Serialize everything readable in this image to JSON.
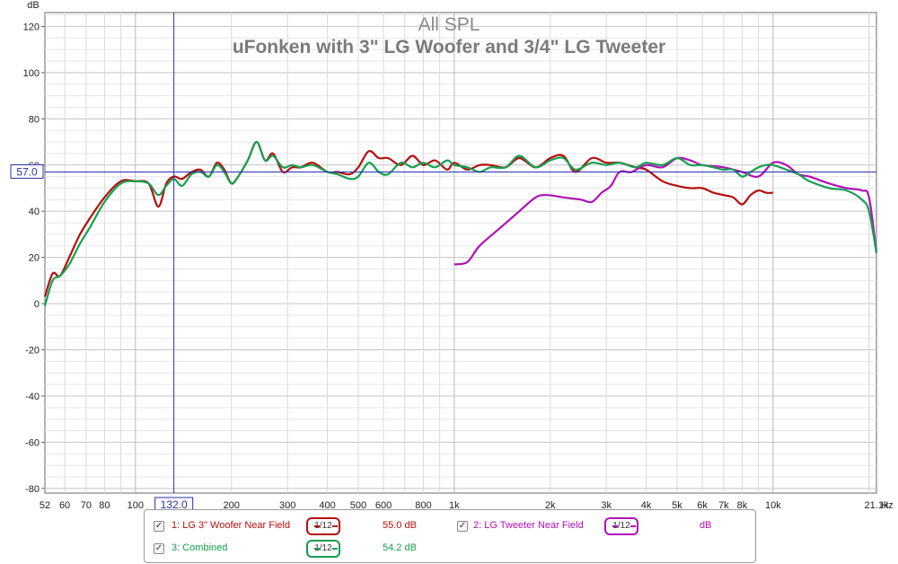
{
  "chart_data": {
    "type": "line",
    "title": "All SPL",
    "subtitle": "uFonken with 3\" LG Woofer and 3/4\" LG Tweeter",
    "ylabel": "dB",
    "xlabel": "Hz",
    "x_scale": "log",
    "xlim": [
      52,
      21100
    ],
    "ylim": [
      -82,
      126
    ],
    "y_ticks": [
      120,
      100,
      80,
      60,
      40,
      20,
      0,
      -20,
      -40,
      -60,
      -80
    ],
    "x_ticks": [
      {
        "v": 52,
        "label": "52"
      },
      {
        "v": 60,
        "label": "60"
      },
      {
        "v": 70,
        "label": "70"
      },
      {
        "v": 80,
        "label": "80"
      },
      {
        "v": 100,
        "label": "100"
      },
      {
        "v": 200,
        "label": "200"
      },
      {
        "v": 300,
        "label": "300"
      },
      {
        "v": 400,
        "label": "400"
      },
      {
        "v": 500,
        "label": "500"
      },
      {
        "v": 600,
        "label": "600"
      },
      {
        "v": 800,
        "label": "800"
      },
      {
        "v": 1000,
        "label": "1k"
      },
      {
        "v": 2000,
        "label": "2k"
      },
      {
        "v": 3000,
        "label": "3k"
      },
      {
        "v": 4000,
        "label": "4k"
      },
      {
        "v": 5000,
        "label": "5k"
      },
      {
        "v": 6000,
        "label": "6k"
      },
      {
        "v": 7000,
        "label": "7k"
      },
      {
        "v": 8000,
        "label": "8k"
      },
      {
        "v": 10000,
        "label": "10k"
      },
      {
        "v": 21100,
        "label": "21.1k"
      }
    ],
    "cursor": {
      "x": 132,
      "x_label": "132.0",
      "y": 57,
      "y_label": "57.0"
    },
    "grid": true,
    "series": [
      {
        "name": "LG 3\" Woofer Near Field",
        "color": "#b50d0d",
        "x": [
          52,
          55,
          58,
          62,
          67,
          72,
          80,
          90,
          100,
          110,
          118,
          125,
          132,
          140,
          150,
          160,
          170,
          180,
          190,
          200,
          210,
          225,
          240,
          255,
          270,
          290,
          310,
          330,
          360,
          400,
          430,
          470,
          500,
          540,
          580,
          620,
          680,
          740,
          800,
          870,
          950,
          1000,
          1100,
          1200,
          1300,
          1450,
          1600,
          1800,
          2000,
          2200,
          2400,
          2700,
          3000,
          3300,
          3700,
          4000,
          4500,
          5000,
          5500,
          6000,
          6500,
          7000,
          7500,
          8000,
          8500,
          9000,
          9500,
          10000
        ],
        "y": [
          3,
          13,
          12,
          20,
          30,
          37,
          46,
          53,
          53,
          52,
          42,
          52,
          55,
          54,
          57,
          58,
          55,
          61,
          58,
          52,
          55,
          62,
          70,
          62,
          65,
          57,
          59,
          59,
          61,
          57,
          57,
          56,
          59,
          66,
          63,
          63,
          60,
          64,
          60,
          62,
          58,
          61,
          58,
          60,
          60,
          59,
          63,
          59,
          63,
          64,
          57,
          63,
          61,
          61,
          59,
          58,
          53,
          51,
          50,
          50,
          48,
          47,
          46,
          43,
          47,
          49,
          48,
          48
        ]
      },
      {
        "name": "LG Tweeter Near Field",
        "color": "#b010b5",
        "x": [
          1000,
          1100,
          1200,
          1400,
          1600,
          1800,
          1950,
          2200,
          2500,
          2700,
          2900,
          3100,
          3300,
          3600,
          4000,
          4500,
          5000,
          5500,
          6000,
          7000,
          8000,
          9000,
          10000,
          11000,
          12000,
          13000,
          15000,
          17000,
          19000,
          20000,
          21100
        ],
        "y": [
          17,
          18,
          25,
          33,
          40,
          46,
          47,
          46,
          45,
          44,
          48,
          51,
          57,
          57,
          60,
          59,
          63,
          62,
          60,
          59,
          57,
          55,
          61,
          60,
          56,
          55,
          52,
          50,
          49,
          46,
          22
        ]
      },
      {
        "name": "Combined",
        "color": "#14a050",
        "x": [
          52,
          55,
          58,
          62,
          67,
          72,
          80,
          90,
          100,
          110,
          118,
          125,
          132,
          140,
          150,
          160,
          170,
          180,
          190,
          200,
          210,
          225,
          240,
          255,
          270,
          290,
          310,
          330,
          360,
          400,
          430,
          470,
          500,
          540,
          580,
          620,
          680,
          740,
          800,
          870,
          950,
          1000,
          1100,
          1200,
          1300,
          1450,
          1600,
          1800,
          2000,
          2200,
          2400,
          2700,
          3000,
          3300,
          3700,
          4000,
          4500,
          5000,
          5500,
          6000,
          6500,
          7000,
          7500,
          8000,
          8500,
          9000,
          9500,
          10000,
          11000,
          12000,
          13000,
          15000,
          17000,
          19000,
          20000,
          21100
        ],
        "y": [
          -1,
          10,
          12,
          17,
          26,
          33,
          44,
          52,
          53,
          52,
          47,
          51,
          54,
          51,
          56,
          57,
          55,
          60,
          57,
          52,
          55,
          62,
          70,
          62,
          64,
          59,
          60,
          59,
          60,
          57,
          56,
          54,
          55,
          61,
          57,
          56,
          61,
          59,
          61,
          59,
          62,
          60,
          59,
          57,
          59,
          59,
          64,
          59,
          62,
          63,
          58,
          61,
          60,
          61,
          59,
          61,
          60,
          63,
          60,
          60,
          59,
          58,
          58,
          55,
          57,
          59,
          60,
          60,
          58,
          56,
          53,
          50,
          49,
          45,
          40,
          22
        ]
      }
    ]
  },
  "legend": [
    {
      "index_label": "1: LG 3\" Woofer Near Field",
      "smoothing": "1/12",
      "value": "55.0 dB",
      "color": "#b50d0d",
      "check": "✓"
    },
    {
      "index_label": "2: LG Tweeter Near Field",
      "smoothing": "1/12",
      "value": "dB",
      "color": "#b010b5",
      "check": "✓"
    },
    {
      "index_label": "3: Combined",
      "smoothing": "1/12",
      "value": "54.2 dB",
      "color": "#14a050",
      "check": "✓"
    }
  ]
}
